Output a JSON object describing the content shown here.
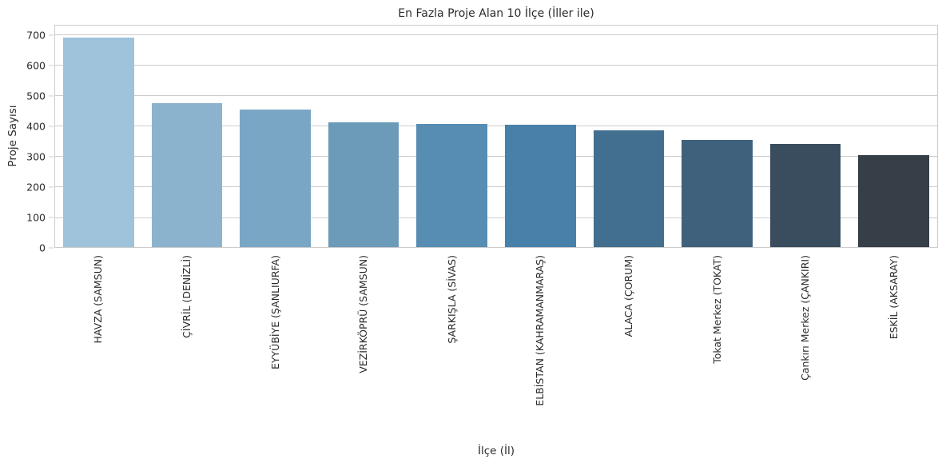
{
  "chart_data": {
    "type": "bar",
    "title": "En Fazla Proje Alan 10 İlçe (İller ile)",
    "xlabel": "İlçe (İl)",
    "ylabel": "Proje Sayısı",
    "categories": [
      "HAVZA (SAMSUN)",
      "ÇİVRİL (DENİZLİ)",
      "EYYÜBİYE (ŞANLIURFA)",
      "VEZİRKÖPRÜ (SAMSUN)",
      "ŞARKIŞLA (SİVAS)",
      "ELBİSTAN (KAHRAMANMARAŞ)",
      "ALACA (ÇORUM)",
      "Tokat Merkez (TOKAT)",
      "Çankırı Merkez (ÇANKIRI)",
      "ESKİL (AKSARAY)"
    ],
    "values": [
      692,
      476,
      456,
      414,
      408,
      405,
      387,
      354,
      343,
      304
    ],
    "bar_colors": [
      "#9fc3da",
      "#8cb3ce",
      "#7aa6c6",
      "#6c9ab9",
      "#578db3",
      "#4781a9",
      "#426f8f",
      "#3f617c",
      "#3a4d5f",
      "#363f47"
    ],
    "yticks": [
      0,
      100,
      200,
      300,
      400,
      500,
      600,
      700
    ],
    "ylim": [
      0,
      734
    ],
    "grid": true,
    "legend": "none",
    "grid_color": "#cccccc",
    "axis_color": "#cccccc",
    "text_color": "#2b2b2b",
    "background": "#ffffff"
  }
}
